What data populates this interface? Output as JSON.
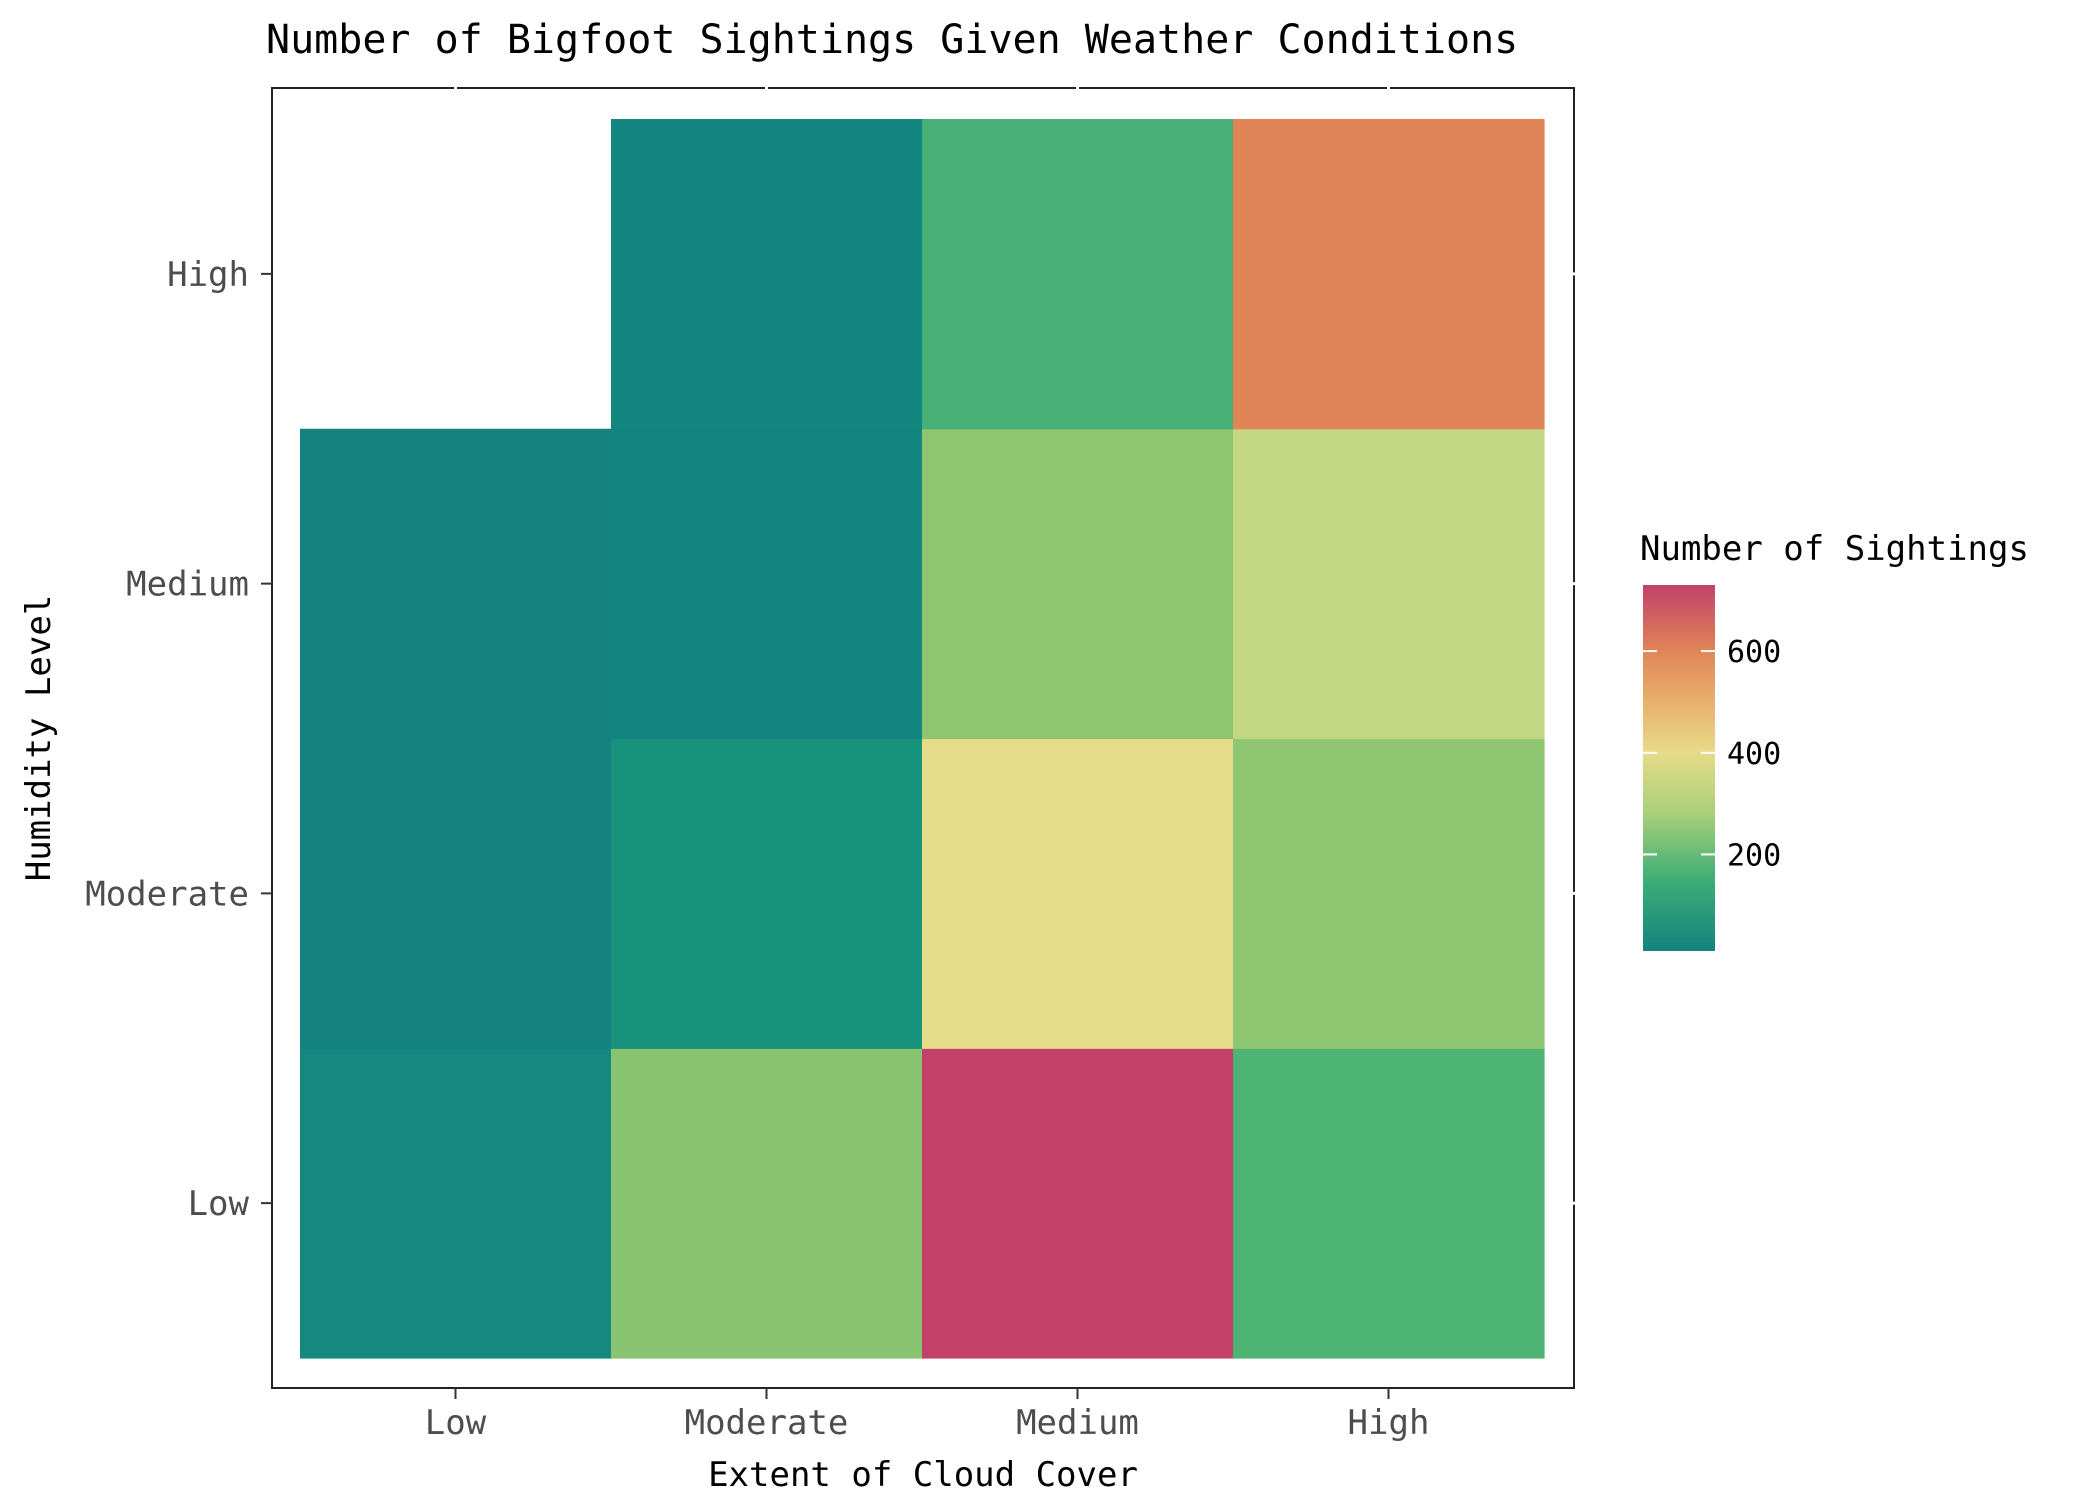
{
  "chart_data": {
    "type": "heatmap",
    "title": "Number of Bigfoot Sightings Given Weather Conditions",
    "xlabel": "Extent of Cloud Cover",
    "ylabel": "Humidity Level",
    "x_categories": [
      "Low",
      "Moderate",
      "Medium",
      "High"
    ],
    "y_categories": [
      "Low",
      "Moderate",
      "Medium",
      "High"
    ],
    "cells": [
      {
        "x": "Low",
        "y": "Low",
        "value": 20,
        "color": "#15897F"
      },
      {
        "x": "Moderate",
        "y": "Low",
        "value": 235,
        "color": "#88C472"
      },
      {
        "x": "Medium",
        "y": "Low",
        "value": 730,
        "color": "#C2416B"
      },
      {
        "x": "High",
        "y": "Low",
        "value": 150,
        "color": "#4DB474"
      },
      {
        "x": "Low",
        "y": "Moderate",
        "value": 12,
        "color": "#14837F"
      },
      {
        "x": "Moderate",
        "y": "Moderate",
        "value": 70,
        "color": "#17927D"
      },
      {
        "x": "Medium",
        "y": "Moderate",
        "value": 390,
        "color": "#E5DB88"
      },
      {
        "x": "High",
        "y": "Moderate",
        "value": 240,
        "color": "#8FC671"
      },
      {
        "x": "Low",
        "y": "Medium",
        "value": 10,
        "color": "#14827F"
      },
      {
        "x": "Moderate",
        "y": "Medium",
        "value": 14,
        "color": "#14847F"
      },
      {
        "x": "Medium",
        "y": "Medium",
        "value": 240,
        "color": "#8FC571"
      },
      {
        "x": "High",
        "y": "Medium",
        "value": 320,
        "color": "#C3D682"
      },
      {
        "x": "Moderate",
        "y": "High",
        "value": 12,
        "color": "#138680"
      },
      {
        "x": "Medium",
        "y": "High",
        "value": 150,
        "color": "#48B077"
      },
      {
        "x": "High",
        "y": "High",
        "value": 590,
        "color": "#E08557"
      }
    ],
    "legend": {
      "title": "Number of Sightings",
      "ticks": [
        200,
        400,
        600
      ],
      "range": [
        10,
        730
      ],
      "gradient": [
        {
          "value": 10,
          "color": "#14837F"
        },
        {
          "value": 150,
          "color": "#3DAE76"
        },
        {
          "value": 280,
          "color": "#A9CF79"
        },
        {
          "value": 400,
          "color": "#E6DB88"
        },
        {
          "value": 500,
          "color": "#E8B06A"
        },
        {
          "value": 600,
          "color": "#E08557"
        },
        {
          "value": 730,
          "color": "#C2416B"
        }
      ],
      "position": "right"
    }
  }
}
